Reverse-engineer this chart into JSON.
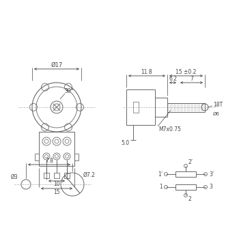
{
  "line_color": "#666666",
  "dim_color": "#444444",
  "font_size": 5.5,
  "annotations": {
    "diam17": "Ø17",
    "angle30": "30°",
    "diam3": "Ø3",
    "diam72": "Ø7.2",
    "dist78": "7.8",
    "dim118": "11.8",
    "dim15pm": "15 ±0.2",
    "dim62": "6.2",
    "dim7": "7",
    "dim50": "5.0",
    "dim10": "10",
    "dim15": "15",
    "thread": "M7x0.75",
    "teeth": "18T",
    "pin1p": "1'",
    "pin3p": "3'",
    "pin1": "1",
    "pin2": "2",
    "pin3": "3",
    "pin2top": "2'"
  }
}
